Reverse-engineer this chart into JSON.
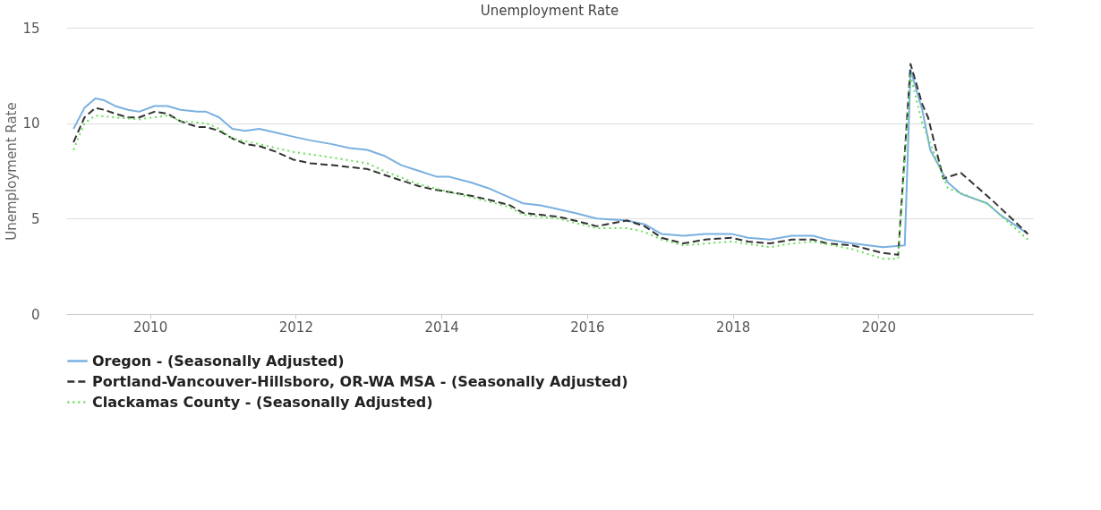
{
  "chart_data": {
    "type": "line",
    "title": "Unemployment Rate",
    "ylabel": "Unemployment Rate",
    "xlim": [
      2008.85,
      2022.12
    ],
    "xticks": [
      2010,
      2012,
      2014,
      2016,
      2018,
      2020
    ],
    "ylim": [
      0,
      15
    ],
    "yticks": [
      0,
      5,
      10,
      15
    ],
    "grid": "y",
    "legend": "bottom",
    "marker": "none",
    "series": [
      {
        "name": "Oregon - (Seasonally Adjusted)",
        "color": "#7ab0e0",
        "line_style": "solid",
        "x": [
          2008.95,
          2009.1,
          2009.25,
          2009.37,
          2009.52,
          2009.7,
          2009.85,
          2010.06,
          2010.24,
          2010.42,
          2010.65,
          2010.77,
          2010.95,
          2011.13,
          2011.31,
          2011.5,
          2011.73,
          2011.96,
          2012.2,
          2012.5,
          2012.74,
          2012.98,
          2013.21,
          2013.45,
          2013.69,
          2013.93,
          2014.1,
          2014.4,
          2014.64,
          2014.94,
          2015.12,
          2015.36,
          2015.6,
          2015.83,
          2016.13,
          2016.55,
          2016.79,
          2017.02,
          2017.32,
          2017.62,
          2017.98,
          2018.21,
          2018.51,
          2018.81,
          2019.1,
          2019.29,
          2019.64,
          2020.06,
          2020.36,
          2020.44,
          2020.6,
          2020.71,
          2020.95,
          2021.13,
          2021.49,
          2021.67,
          2022.05
        ],
        "values": [
          9.7,
          10.8,
          11.3,
          11.2,
          10.9,
          10.7,
          10.6,
          10.9,
          10.9,
          10.7,
          10.6,
          10.6,
          10.3,
          9.7,
          9.6,
          9.7,
          9.5,
          9.3,
          9.1,
          8.9,
          8.7,
          8.6,
          8.3,
          7.8,
          7.5,
          7.2,
          7.2,
          6.9,
          6.6,
          6.1,
          5.8,
          5.7,
          5.5,
          5.3,
          5.0,
          4.9,
          4.7,
          4.2,
          4.1,
          4.2,
          4.2,
          4.0,
          3.9,
          4.1,
          4.1,
          3.9,
          3.7,
          3.5,
          3.6,
          12.8,
          10.7,
          8.6,
          6.9,
          6.3,
          5.8,
          5.2,
          4.2
        ]
      },
      {
        "name": "Portland-Vancouver-Hillsboro, OR-WA MSA - (Seasonally Adjusted)",
        "color": "#333333",
        "line_style": "dashed",
        "x": [
          2008.95,
          2009.1,
          2009.25,
          2009.37,
          2009.52,
          2009.7,
          2009.85,
          2010.06,
          2010.24,
          2010.42,
          2010.65,
          2010.77,
          2010.95,
          2011.13,
          2011.31,
          2011.5,
          2011.73,
          2011.96,
          2012.2,
          2012.5,
          2012.74,
          2012.98,
          2013.21,
          2013.45,
          2013.69,
          2013.93,
          2014.1,
          2014.4,
          2014.64,
          2014.94,
          2015.12,
          2015.36,
          2015.6,
          2015.83,
          2016.13,
          2016.55,
          2016.79,
          2017.02,
          2017.32,
          2017.62,
          2017.98,
          2018.21,
          2018.51,
          2018.81,
          2019.1,
          2019.29,
          2019.64,
          2020.06,
          2020.27,
          2020.44,
          2020.6,
          2020.68,
          2020.89,
          2021.13,
          2021.55,
          2022.05
        ],
        "values": [
          9.0,
          10.3,
          10.8,
          10.7,
          10.5,
          10.3,
          10.3,
          10.6,
          10.5,
          10.1,
          9.8,
          9.8,
          9.6,
          9.2,
          8.9,
          8.8,
          8.5,
          8.1,
          7.9,
          7.8,
          7.7,
          7.6,
          7.3,
          7.0,
          6.7,
          6.5,
          6.4,
          6.2,
          6.0,
          5.7,
          5.3,
          5.2,
          5.1,
          4.9,
          4.6,
          4.9,
          4.6,
          4.0,
          3.7,
          3.9,
          4.0,
          3.8,
          3.7,
          3.9,
          3.9,
          3.7,
          3.6,
          3.2,
          3.1,
          13.1,
          11.0,
          10.3,
          7.1,
          7.4,
          6.0,
          4.2
        ]
      },
      {
        "name": "Clackamas County - (Seasonally Adjusted)",
        "color": "#66dd55",
        "line_style": "dotted",
        "x": [
          2008.95,
          2009.1,
          2009.25,
          2009.52,
          2009.85,
          2010.24,
          2010.42,
          2010.77,
          2010.95,
          2011.13,
          2011.5,
          2011.96,
          2012.5,
          2012.98,
          2013.21,
          2013.69,
          2014.1,
          2014.64,
          2014.94,
          2015.12,
          2015.6,
          2016.13,
          2016.55,
          2016.79,
          2017.02,
          2017.32,
          2017.98,
          2018.51,
          2018.81,
          2019.1,
          2019.64,
          2020.06,
          2020.27,
          2020.44,
          2020.6,
          2020.95,
          2021.49,
          2022.05
        ],
        "values": [
          8.6,
          10.0,
          10.4,
          10.3,
          10.2,
          10.4,
          10.1,
          10.0,
          9.7,
          9.2,
          8.9,
          8.5,
          8.2,
          7.9,
          7.5,
          6.8,
          6.4,
          5.9,
          5.6,
          5.2,
          5.0,
          4.5,
          4.5,
          4.3,
          3.9,
          3.6,
          3.8,
          3.5,
          3.7,
          3.8,
          3.4,
          2.9,
          2.9,
          12.5,
          10.0,
          6.6,
          5.8,
          3.9
        ]
      }
    ]
  }
}
